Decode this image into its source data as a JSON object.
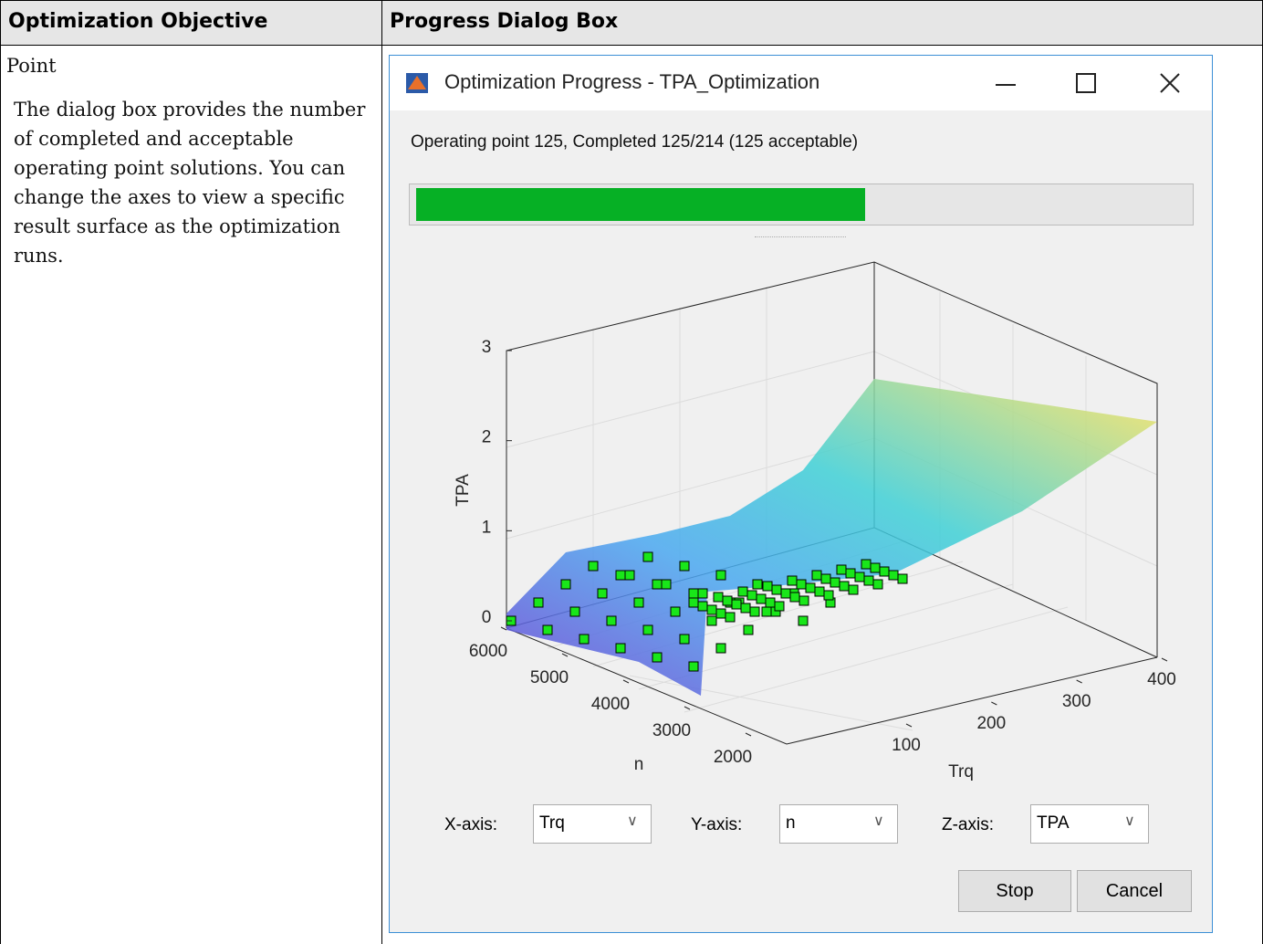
{
  "table": {
    "headers": [
      "Optimization Objective",
      "Progress Dialog Box"
    ],
    "objective": {
      "title": "Point",
      "description": "The dialog box provides the number of completed and acceptable operating point solutions. You can change the axes to view a specific result surface as the optimization runs."
    },
    "dialog": {
      "title": "Optimization Progress - TPA_Optimization",
      "status": "Operating point 125, Completed 125/214  (125 acceptable)",
      "plot": {
        "zlabel": "TPA",
        "ylabel": "n",
        "xlabel": "Trq",
        "zticks": [
          0,
          1,
          2,
          3
        ],
        "yticks": [
          6000,
          5000,
          4000,
          3000,
          2000
        ],
        "xticks": [
          100,
          200,
          300,
          400
        ]
      },
      "axis_selectors": [
        {
          "label": "X-axis:",
          "value": "Trq"
        },
        {
          "label": "Y-axis:",
          "value": "n"
        },
        {
          "label": "Z-axis:",
          "value": "TPA"
        }
      ],
      "buttons": [
        "Stop",
        "Cancel"
      ]
    }
  }
}
